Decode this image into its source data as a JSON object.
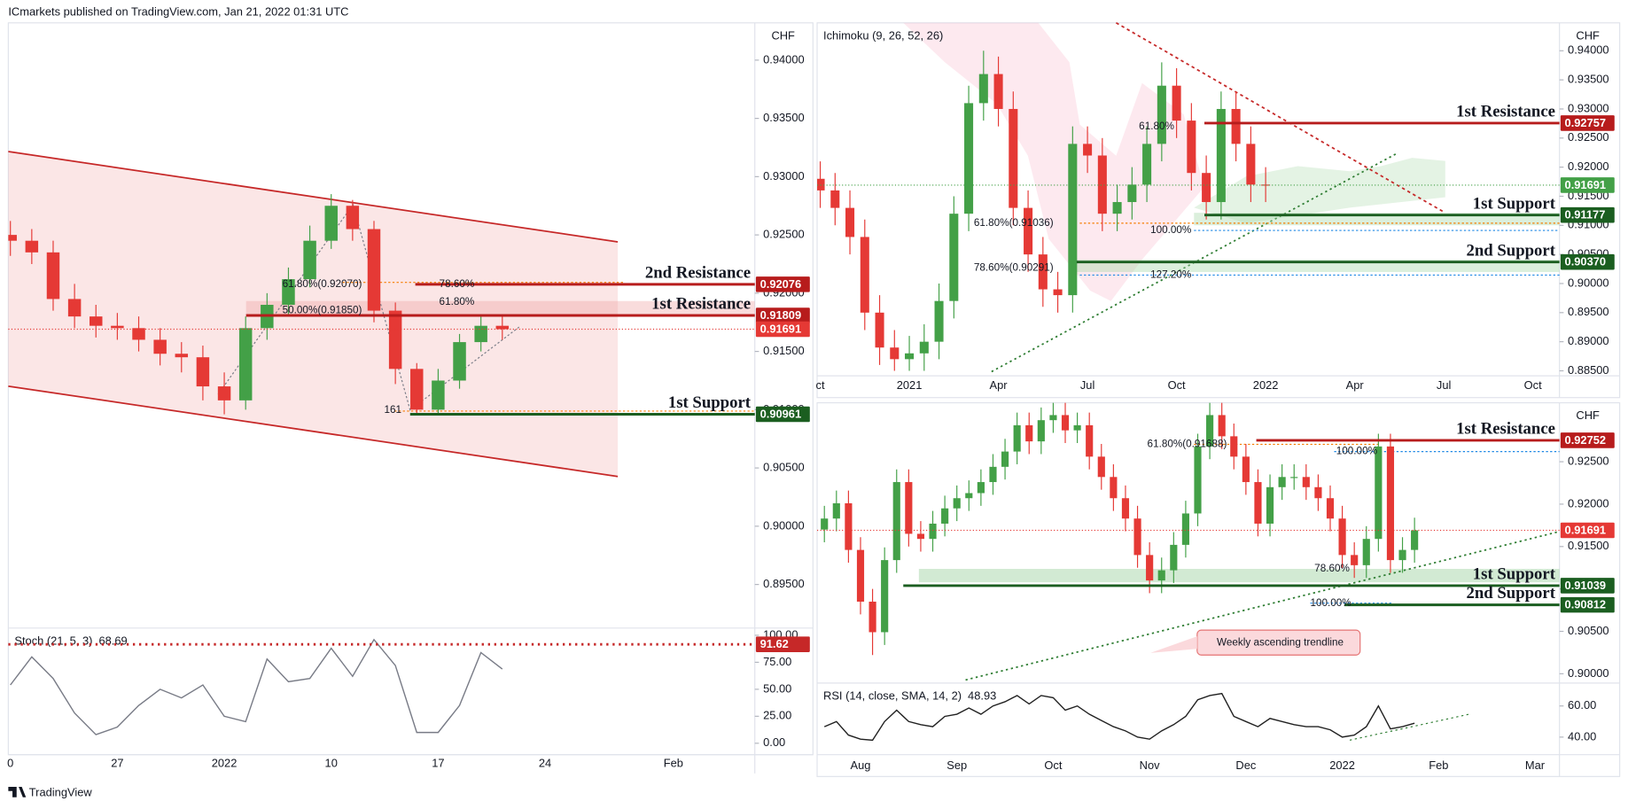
{
  "header": "ICmarkets published on TradingView.com, Jan 21, 2022 01:31 UTC",
  "footer": "TradingView",
  "chart_data": [
    {
      "type": "candlestick",
      "currency": "CHF",
      "up_color": "#43a047",
      "down_color": "#e53935",
      "categories": [
        "0",
        null,
        null,
        null,
        null,
        "27",
        null,
        null,
        null,
        null,
        "2022",
        null,
        null,
        null,
        null,
        "10",
        null,
        null,
        null,
        null,
        "17",
        null,
        null,
        null,
        null,
        "24",
        null,
        null,
        null,
        null,
        null,
        "Feb",
        null,
        null,
        null
      ],
      "open": [
        0.925,
        0.9245,
        0.9235,
        0.9195,
        0.918,
        0.9172,
        0.917,
        0.916,
        0.9148,
        0.9145,
        0.912,
        0.9108,
        0.917,
        0.919,
        0.9212,
        0.9245,
        0.9275,
        0.9255,
        0.9185,
        0.9135,
        0.91,
        0.9125,
        0.9158,
        0.9172,
        null,
        null,
        null,
        null,
        null,
        null,
        null,
        null,
        null,
        null,
        null
      ],
      "high": [
        0.9262,
        0.9255,
        0.9245,
        0.9208,
        0.919,
        0.9183,
        0.918,
        0.917,
        0.9158,
        0.9155,
        0.9132,
        0.918,
        0.92,
        0.9222,
        0.9258,
        0.9285,
        0.928,
        0.9262,
        0.9192,
        0.914,
        0.9135,
        0.9165,
        0.9182,
        0.918,
        null,
        null,
        null,
        null,
        null,
        null,
        null,
        null,
        null,
        null,
        null
      ],
      "low": [
        0.9232,
        0.9225,
        0.9185,
        0.917,
        0.9162,
        0.916,
        0.915,
        0.9138,
        0.9132,
        0.9108,
        0.9096,
        0.91,
        0.916,
        0.918,
        0.9205,
        0.9238,
        0.9245,
        0.9175,
        0.9122,
        0.9096,
        0.9096,
        0.9118,
        0.915,
        0.916,
        null,
        null,
        null,
        null,
        null,
        null,
        null,
        null,
        null,
        null,
        null
      ],
      "close": [
        0.9245,
        0.9235,
        0.9195,
        0.918,
        0.9172,
        0.917,
        0.916,
        0.9148,
        0.9145,
        0.912,
        0.9108,
        0.917,
        0.919,
        0.9212,
        0.9245,
        0.9275,
        0.9255,
        0.9185,
        0.9135,
        0.91,
        0.9125,
        0.9158,
        0.9172,
        0.91691,
        null,
        null,
        null,
        null,
        null,
        null,
        null,
        null,
        null,
        null,
        null
      ],
      "ylim": [
        0.89126,
        0.9432
      ],
      "yticks": [
        {
          "value": 0.94,
          "label": "0.94000"
        },
        {
          "value": 0.935,
          "label": "0.93500"
        },
        {
          "value": 0.93,
          "label": "0.93000"
        },
        {
          "value": 0.925,
          "label": "0.92500"
        },
        {
          "value": 0.92,
          "label": "0.92000"
        },
        {
          "value": 0.915,
          "label": "0.91500"
        },
        {
          "value": 0.91,
          "label": "0.91000"
        },
        {
          "value": 0.905,
          "label": "0.90500"
        },
        {
          "value": 0.9,
          "label": "0.90000"
        },
        {
          "value": 0.895,
          "label": "0.89500"
        }
      ],
      "last": 0.91691,
      "last_color": "#e53935",
      "levels": [
        {
          "name": "2nd Resistance",
          "value": 0.92076,
          "color": "#b71c1c"
        },
        {
          "name": "1st Resistance",
          "value": 0.91809,
          "color": "#b71c1c"
        },
        {
          "name": "1st Support",
          "value": 0.90961,
          "color": "#1b5e20"
        }
      ],
      "annotations": [
        {
          "text": "61.80%(0.92070)"
        },
        {
          "text": "78.60%"
        },
        {
          "text": "61.80%"
        },
        {
          "text": "50.00%(0.91850)"
        },
        {
          "text": "161"
        }
      ],
      "indicator": {
        "name": "Stoch (21, 5, 3)",
        "color": "#787b86",
        "values": [
          54,
          80,
          60,
          28,
          8,
          15,
          35,
          50,
          42,
          54,
          25,
          20,
          78,
          57,
          60,
          88,
          62,
          96,
          72,
          10,
          10,
          35,
          84,
          68.69,
          null,
          null,
          null,
          null,
          null,
          null,
          null,
          null,
          null,
          null,
          null
        ],
        "ylim": [
          -10.6,
          106.7
        ],
        "yticks": [
          {
            "value": 100,
            "label": "100.00"
          },
          {
            "value": 75,
            "label": "75.00"
          },
          {
            "value": 50,
            "label": "50.00"
          },
          {
            "value": 25,
            "label": "25.00"
          },
          {
            "value": 0,
            "label": "0.00"
          }
        ],
        "level": 91.62,
        "level_color": "#c62828"
      }
    },
    {
      "type": "candlestick",
      "currency": "CHF",
      "up_color": "#43a047",
      "down_color": "#e53935",
      "indicator_title": "Ichimoku (9, 26, 52, 26)",
      "categories": [
        "ct",
        null,
        null,
        null,
        null,
        null,
        "2021",
        null,
        null,
        null,
        null,
        null,
        "Apr",
        null,
        null,
        null,
        null,
        null,
        "Jul",
        null,
        null,
        null,
        null,
        null,
        "Oct",
        null,
        null,
        null,
        null,
        null,
        "2022",
        null,
        null,
        null,
        null,
        null,
        "Apr",
        null,
        null,
        null,
        null,
        null,
        "Jul",
        null,
        null,
        null,
        null,
        null,
        "Oct",
        null
      ],
      "open": [
        0.918,
        0.916,
        0.913,
        0.908,
        0.895,
        0.889,
        0.887,
        0.888,
        0.89,
        0.897,
        0.912,
        0.931,
        0.936,
        0.93,
        0.913,
        0.905,
        0.899,
        0.898,
        0.924,
        0.922,
        0.912,
        0.914,
        0.917,
        0.924,
        0.934,
        0.928,
        0.919,
        0.914,
        0.93,
        0.924,
        0.917,
        null,
        null,
        null,
        null,
        null,
        null,
        null,
        null,
        null,
        null,
        null,
        null,
        null,
        null,
        null,
        null,
        null,
        null,
        null
      ],
      "high": [
        0.921,
        0.919,
        0.916,
        0.911,
        0.898,
        0.892,
        0.891,
        0.893,
        0.9,
        0.915,
        0.934,
        0.94,
        0.939,
        0.933,
        0.916,
        0.908,
        0.902,
        0.927,
        0.927,
        0.925,
        0.917,
        0.92,
        0.927,
        0.938,
        0.937,
        0.931,
        0.922,
        0.933,
        0.933,
        0.927,
        0.92,
        null,
        null,
        null,
        null,
        null,
        null,
        null,
        null,
        null,
        null,
        null,
        null,
        null,
        null,
        null,
        null,
        null,
        null,
        null
      ],
      "low": [
        0.913,
        0.91,
        0.905,
        0.892,
        0.886,
        0.885,
        0.885,
        0.885,
        0.887,
        0.894,
        0.909,
        0.928,
        0.927,
        0.91,
        0.902,
        0.896,
        0.895,
        0.895,
        0.919,
        0.909,
        0.909,
        0.911,
        0.914,
        0.921,
        0.925,
        0.916,
        0.911,
        0.911,
        0.921,
        0.914,
        0.914,
        null,
        null,
        null,
        null,
        null,
        null,
        null,
        null,
        null,
        null,
        null,
        null,
        null,
        null,
        null,
        null,
        null,
        null,
        null
      ],
      "close": [
        0.916,
        0.913,
        0.908,
        0.895,
        0.889,
        0.887,
        0.888,
        0.89,
        0.897,
        0.912,
        0.931,
        0.936,
        0.93,
        0.913,
        0.905,
        0.899,
        0.898,
        0.924,
        0.922,
        0.912,
        0.914,
        0.917,
        0.924,
        0.934,
        0.928,
        0.919,
        0.914,
        0.93,
        0.924,
        0.917,
        0.91691,
        null,
        null,
        null,
        null,
        null,
        null,
        null,
        null,
        null,
        null,
        null,
        null,
        null,
        null,
        null,
        null,
        null,
        null,
        null
      ],
      "ylim": [
        0.8845,
        0.9448
      ],
      "yticks": [
        {
          "value": 0.94,
          "label": "0.94000"
        },
        {
          "value": 0.935,
          "label": "0.93500"
        },
        {
          "value": 0.93,
          "label": "0.93000"
        },
        {
          "value": 0.925,
          "label": "0.92500"
        },
        {
          "value": 0.92,
          "label": "0.92000"
        },
        {
          "value": 0.915,
          "label": "0.91500"
        },
        {
          "value": 0.91,
          "label": "0.91000"
        },
        {
          "value": 0.905,
          "label": "0.90500"
        },
        {
          "value": 0.9,
          "label": "0.90000"
        },
        {
          "value": 0.895,
          "label": "0.89500"
        },
        {
          "value": 0.89,
          "label": "0.89000"
        },
        {
          "value": 0.885,
          "label": "0.88500"
        }
      ],
      "last": 0.91691,
      "last_color": "#43a047",
      "levels": [
        {
          "name": "1st Resistance",
          "value": 0.92757,
          "color": "#b71c1c"
        },
        {
          "name": "1st Support",
          "value": 0.91177,
          "color": "#1b5e20"
        },
        {
          "name": "2nd Support",
          "value": 0.9037,
          "value_label": "0.90370",
          "color": "#1b5e20"
        }
      ],
      "annotations": [
        {
          "text": "61.80%(0.91036)"
        },
        {
          "text": "100.00%"
        },
        {
          "text": "78.60%(0.90291)"
        },
        {
          "text": "127.20%"
        },
        {
          "text": "61.80%"
        }
      ]
    },
    {
      "type": "candlestick",
      "currency": "CHF",
      "up_color": "#43a047",
      "down_color": "#e53935",
      "categories": [
        null,
        null,
        null,
        "Aug",
        null,
        null,
        null,
        null,
        null,
        null,
        null,
        "Sep",
        null,
        null,
        null,
        null,
        null,
        null,
        null,
        "Oct",
        null,
        null,
        null,
        null,
        null,
        null,
        null,
        "Nov",
        null,
        null,
        null,
        null,
        null,
        null,
        null,
        "Dec",
        null,
        null,
        null,
        null,
        null,
        null,
        null,
        "2022",
        null,
        null,
        null,
        null,
        null,
        null,
        null,
        "Feb",
        null,
        null,
        null,
        null,
        null,
        null,
        null,
        "Mar",
        null
      ],
      "open": [
        0.917,
        0.9183,
        0.9201,
        0.9146,
        0.9085,
        0.9049,
        0.9134,
        0.9226,
        0.9165,
        0.9159,
        0.9177,
        0.9195,
        0.9207,
        0.9213,
        0.9226,
        0.9244,
        0.9262,
        0.9293,
        0.9274,
        0.9299,
        0.9305,
        0.9287,
        0.9293,
        0.9256,
        0.9232,
        0.9207,
        0.9183,
        0.914,
        0.911,
        0.9122,
        0.9152,
        0.9189,
        0.9268,
        0.9305,
        0.928,
        0.9256,
        0.9226,
        0.9177,
        0.922,
        0.9232,
        0.9232,
        0.922,
        0.9207,
        0.9183,
        0.914,
        0.9128,
        0.9159,
        0.9268,
        0.9134,
        0.9146,
        null,
        null,
        null,
        null,
        null,
        null,
        null,
        null,
        null,
        null,
        null
      ],
      "high": [
        0.9198,
        0.9216,
        0.9216,
        0.9161,
        0.91,
        0.9149,
        0.9241,
        0.9241,
        0.918,
        0.9192,
        0.921,
        0.9222,
        0.9228,
        0.9241,
        0.9259,
        0.9277,
        0.9308,
        0.9308,
        0.9314,
        0.932,
        0.932,
        0.9308,
        0.9308,
        0.9271,
        0.9247,
        0.9222,
        0.9198,
        0.9155,
        0.9137,
        0.9167,
        0.9204,
        0.9283,
        0.932,
        0.932,
        0.9295,
        0.9271,
        0.9241,
        0.9235,
        0.9247,
        0.9247,
        0.9247,
        0.9235,
        0.9222,
        0.9198,
        0.9155,
        0.9174,
        0.9283,
        0.9283,
        0.9161,
        0.9184,
        null,
        null,
        null,
        null,
        null,
        null,
        null,
        null,
        null,
        null,
        null
      ],
      "low": [
        0.9155,
        0.9168,
        0.9131,
        0.907,
        0.9022,
        0.9034,
        0.9119,
        0.915,
        0.9144,
        0.9144,
        0.9162,
        0.918,
        0.9192,
        0.9198,
        0.9211,
        0.9229,
        0.9247,
        0.9259,
        0.9259,
        0.9284,
        0.9272,
        0.9272,
        0.9241,
        0.9217,
        0.9192,
        0.9168,
        0.9125,
        0.9095,
        0.9095,
        0.9107,
        0.9137,
        0.9174,
        0.9253,
        0.9265,
        0.9241,
        0.9211,
        0.9162,
        0.9162,
        0.9205,
        0.9217,
        0.9205,
        0.9192,
        0.9168,
        0.9125,
        0.9113,
        0.9113,
        0.9144,
        0.9119,
        0.9119,
        0.9131,
        null,
        null,
        null,
        null,
        null,
        null,
        null,
        null,
        null,
        null,
        null
      ],
      "close": [
        0.9183,
        0.9201,
        0.9146,
        0.9085,
        0.9049,
        0.9134,
        0.9226,
        0.9165,
        0.9159,
        0.9177,
        0.9195,
        0.9207,
        0.9213,
        0.9226,
        0.9244,
        0.9262,
        0.9293,
        0.9274,
        0.9299,
        0.9305,
        0.9287,
        0.9293,
        0.9256,
        0.9232,
        0.9207,
        0.9183,
        0.914,
        0.911,
        0.9122,
        0.9152,
        0.9189,
        0.9268,
        0.9305,
        0.928,
        0.9256,
        0.9226,
        0.9177,
        0.922,
        0.9232,
        0.9232,
        0.922,
        0.9207,
        0.9183,
        0.914,
        0.9128,
        0.9159,
        0.9268,
        0.9134,
        0.9146,
        0.91691,
        null,
        null,
        null,
        null,
        null,
        null,
        null,
        null,
        null,
        null,
        null
      ],
      "ylim": [
        0.8989,
        0.93195
      ],
      "yticks": [
        {
          "value": 0.925,
          "label": "0.92500"
        },
        {
          "value": 0.92,
          "label": "0.92000"
        },
        {
          "value": 0.915,
          "label": "0.91500"
        },
        {
          "value": 0.91,
          "label": "0.91000"
        },
        {
          "value": 0.905,
          "label": "0.90500"
        },
        {
          "value": 0.9,
          "label": "0.90000"
        }
      ],
      "last": 0.91691,
      "last_color": "#e53935",
      "levels": [
        {
          "name": "1st Resistance",
          "value": 0.92752,
          "color": "#b71c1c"
        },
        {
          "name": "1st Support",
          "value": 0.91039,
          "color": "#1b5e20"
        },
        {
          "name": "2nd Support",
          "value": 0.90812,
          "color": "#1b5e20"
        }
      ],
      "annotations": [
        {
          "text": "61.80%(0.91688)"
        },
        {
          "text": "100.00%"
        },
        {
          "text": "78.60%"
        },
        {
          "text": "100.00%"
        },
        {
          "text": "Weekly ascending trendline"
        }
      ],
      "indicator": {
        "name": "RSI (14, close, SMA, 14, 2)",
        "color": "#212121",
        "values": [
          46.7,
          50,
          41.3,
          38.7,
          38,
          50,
          57.3,
          50,
          48,
          46.7,
          53.3,
          54.7,
          58.7,
          54.7,
          60,
          62.7,
          66.7,
          61.3,
          66.7,
          65.3,
          57.3,
          60,
          54.7,
          50.7,
          46.7,
          44,
          40,
          38.7,
          44,
          48,
          53.3,
          64,
          66.7,
          68,
          53.3,
          50,
          46.7,
          52,
          50,
          48,
          46.7,
          46.7,
          44.7,
          40,
          41.3,
          46.7,
          60,
          45.3,
          46.7,
          48.93,
          null,
          null,
          null,
          null,
          null,
          null,
          null,
          null,
          null,
          null,
          null
        ],
        "ylim": [
          28.7,
          74.7
        ],
        "yticks": [
          {
            "value": 60,
            "label": "60.00"
          },
          {
            "value": 40,
            "label": "40.00"
          }
        ]
      }
    }
  ]
}
